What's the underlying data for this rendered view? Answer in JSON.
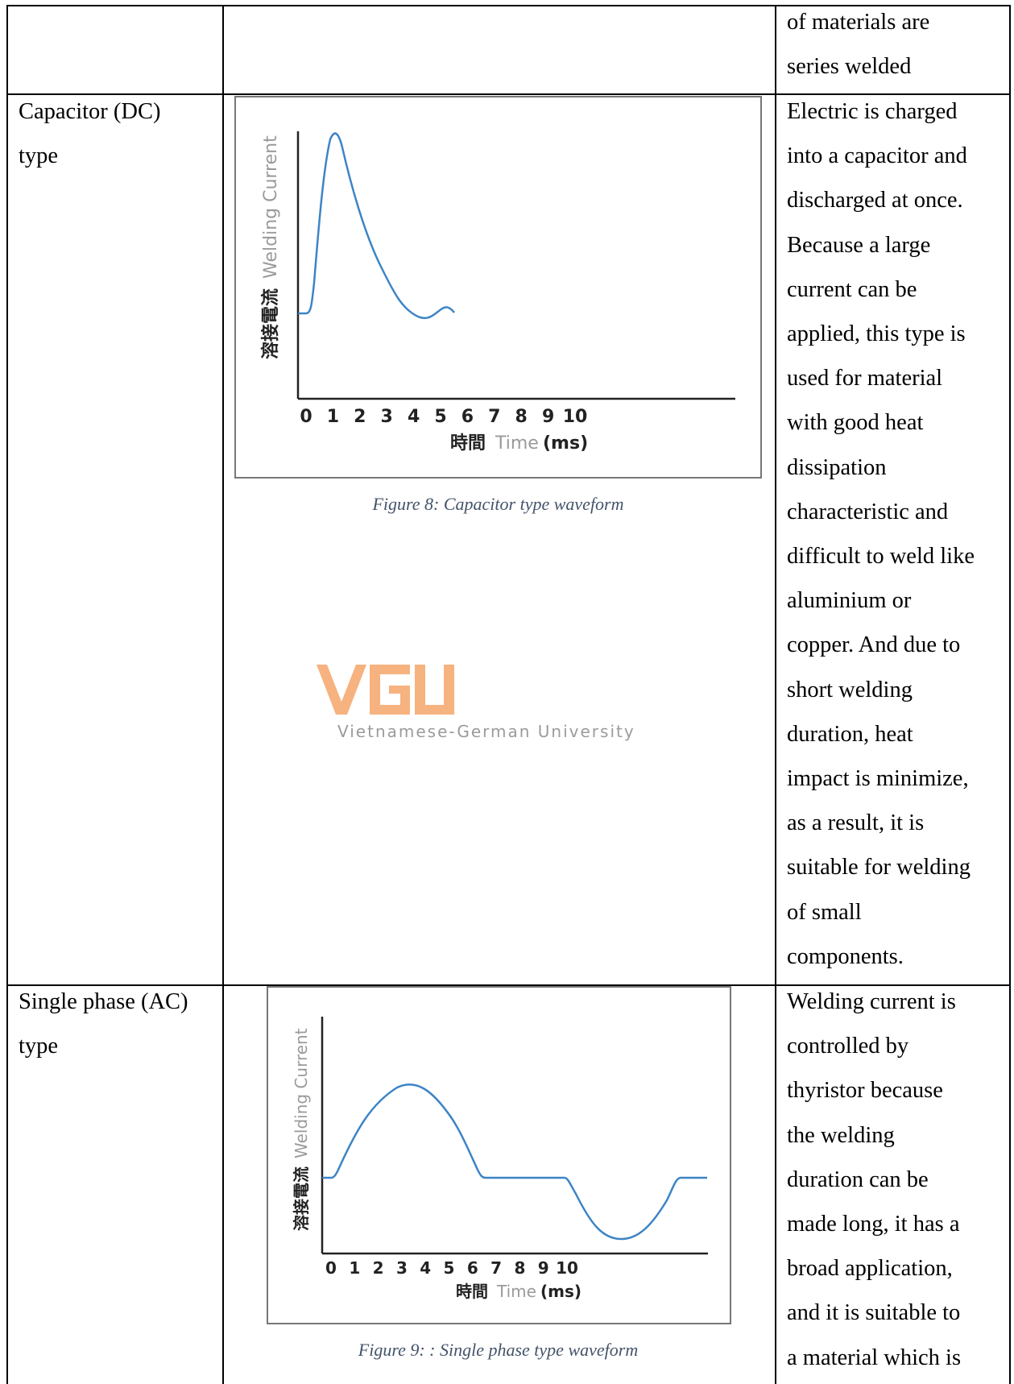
{
  "row_top": {
    "col3_lines": [
      "of materials are",
      "series welded"
    ]
  },
  "row_capacitor": {
    "type_lines": [
      "Capacitor (DC)",
      "type"
    ],
    "desc_lines": [
      "Electric is charged",
      "into a capacitor and",
      "discharged at once.",
      "Because a large",
      "current can be",
      "applied, this type is",
      "used for material",
      "with good heat",
      "dissipation",
      "characteristic and",
      "difficult to weld like",
      "aluminium or",
      "copper. And due to",
      "short welding",
      "duration, heat",
      "impact is minimize,",
      "as a result, it is",
      "suitable for welding",
      "of small",
      "components."
    ],
    "figure": {
      "ylabel_cjk": "溶接電流",
      "ylabel_en": "Welding Current",
      "xlabel_cjk": "時間",
      "xlabel_en": "Time",
      "xlabel_unit": "(ms)",
      "ticks": [
        "0",
        "1",
        "2",
        "3",
        "4",
        "5",
        "6",
        "7",
        "8",
        "9",
        "10"
      ],
      "caption": "Figure 8: Capacitor type waveform"
    }
  },
  "row_single": {
    "type_lines": [
      "Single phase (AC)",
      "type"
    ],
    "desc_lines": [
      "Welding current is",
      "controlled by",
      "thyristor because",
      "the welding",
      "duration can be",
      "made long, it has a",
      "broad application,",
      "and it is suitable to",
      "a material which is"
    ],
    "figure": {
      "ylabel_cjk": "溶接電流",
      "ylabel_en": "Welding Current",
      "xlabel_cjk": "時間",
      "xlabel_en": "Time",
      "xlabel_unit": "(ms)",
      "ticks": [
        "0",
        "1",
        "2",
        "3",
        "4",
        "5",
        "6",
        "7",
        "8",
        "9",
        "10"
      ],
      "caption": "Figure 9: : Single phase type waveform"
    }
  },
  "watermark": {
    "logo_text": "VGU",
    "subtitle": "Vietnamese-German University",
    "color": "#f6b27f"
  },
  "colors": {
    "curve": "#3d84c6",
    "caption": "#44546a"
  }
}
